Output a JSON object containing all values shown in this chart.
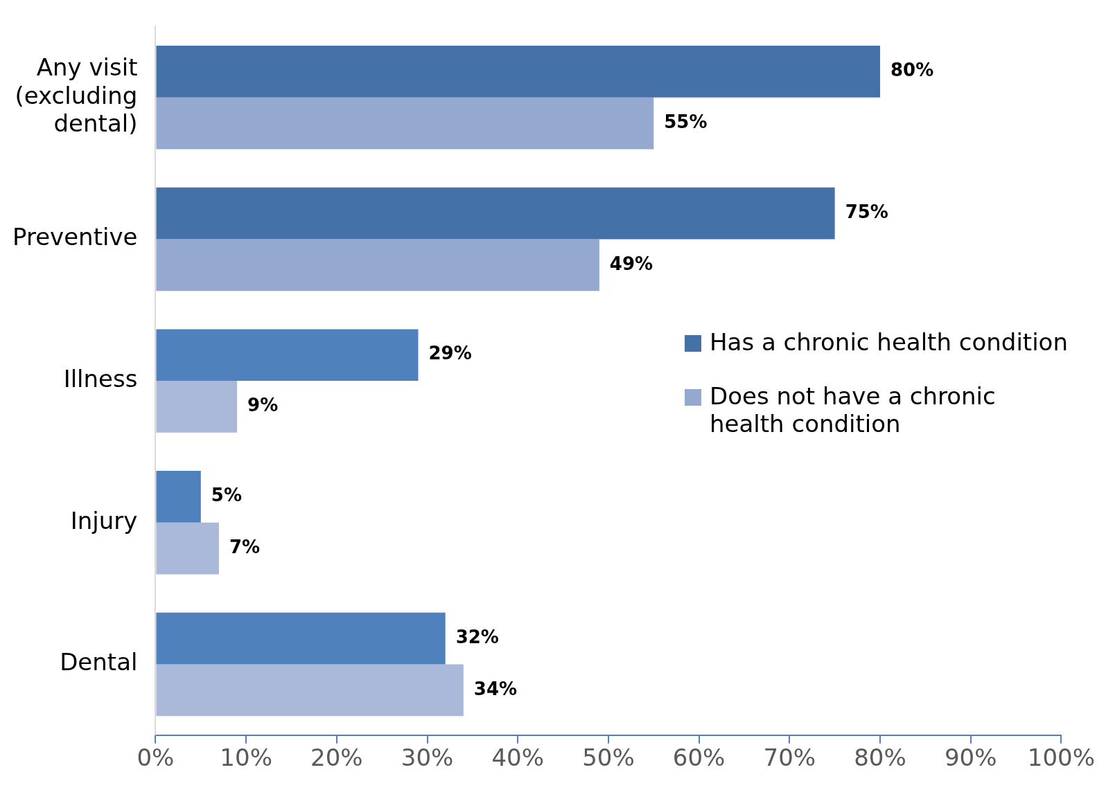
{
  "chart_data": {
    "type": "bar",
    "orientation": "horizontal",
    "categories": [
      "Any visit (excluding dental)",
      "Preventive",
      "Illness",
      "Injury",
      "Dental"
    ],
    "series": [
      {
        "name": "Has a chronic health condition",
        "color": "#4472a8",
        "colors": [
          "#4472a8",
          "#4472a8",
          "#4f81bd",
          "#4f81bd",
          "#4f81bd"
        ],
        "values": [
          80,
          75,
          29,
          5,
          32
        ],
        "value_labels": [
          "80%",
          "75%",
          "29%",
          "5%",
          "32%"
        ]
      },
      {
        "name": "Does not have a chronic health condition",
        "color": "#95a9d0",
        "colors": [
          "#95a9d0",
          "#95a9d0",
          "#aab9d9",
          "#aab9d9",
          "#aab9d9"
        ],
        "values": [
          55,
          49,
          9,
          7,
          34
        ],
        "value_labels": [
          "55%",
          "49%",
          "9%",
          "7%",
          "34%"
        ]
      }
    ],
    "xlim": [
      0,
      100
    ],
    "xticks": [
      {
        "value": 0,
        "label": "0%"
      },
      {
        "value": 10,
        "label": "10%"
      },
      {
        "value": 20,
        "label": "20%"
      },
      {
        "value": 30,
        "label": "30%"
      },
      {
        "value": 40,
        "label": "40%"
      },
      {
        "value": 50,
        "label": "50%"
      },
      {
        "value": 60,
        "label": "60%"
      },
      {
        "value": 70,
        "label": "70%"
      },
      {
        "value": 80,
        "label": "80%"
      },
      {
        "value": 90,
        "label": "90%"
      },
      {
        "value": 100,
        "label": "100%"
      }
    ],
    "grid": false,
    "legend": "right"
  }
}
